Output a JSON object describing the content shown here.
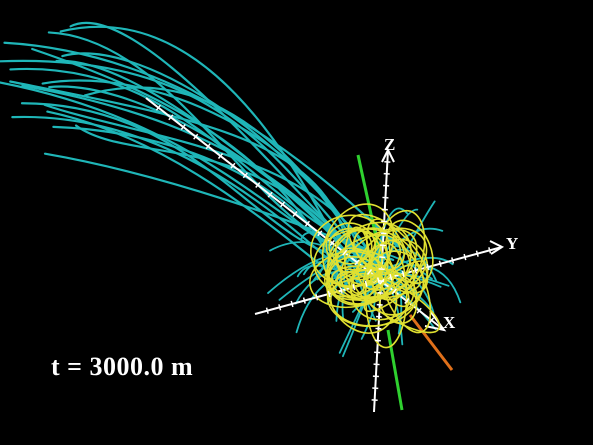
{
  "axes": {
    "x_label": "X",
    "y_label": "Y",
    "z_label": "Z"
  },
  "time_label": "t = 3000.0 m",
  "colors": {
    "background": "#000000",
    "far_field_lines": "#1fb6b8",
    "near_field_lines": "#e0e030",
    "axes": "#ffffff",
    "green_marker": "#2fd12f",
    "orange_marker": "#e0701a"
  }
}
